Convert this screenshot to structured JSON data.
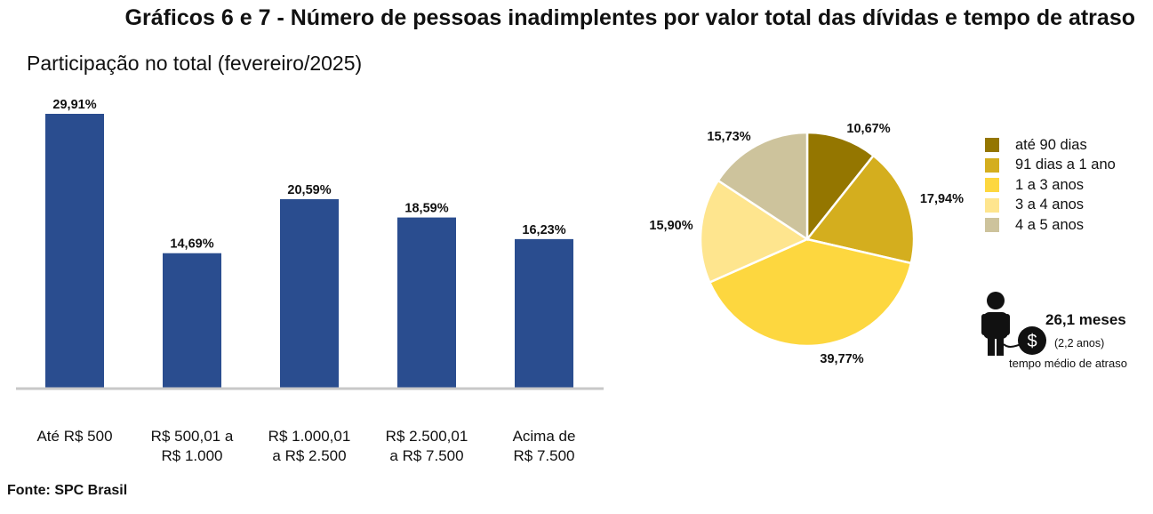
{
  "title": "Gráficos 6 e 7 - Número de pessoas inadimplentes por valor total das dívidas e tempo de atraso",
  "subtitle": "Participação no total (fevereiro/2025)",
  "source": "Fonte: SPC Brasil",
  "chart_data": [
    {
      "type": "bar",
      "categories": [
        [
          "Até R$ 500"
        ],
        [
          "R$ 500,01 a",
          "R$ 1.000"
        ],
        [
          "R$ 1.000,01",
          "a R$ 2.500"
        ],
        [
          "R$ 2.500,01",
          "a R$ 7.500"
        ],
        [
          "Acima de",
          "R$ 7.500"
        ]
      ],
      "values": [
        29.91,
        14.69,
        20.59,
        18.59,
        16.23
      ],
      "value_labels": [
        "29,91%",
        "14,69%",
        "20,59%",
        "18,59%",
        "16,23%"
      ],
      "ylim": [
        0,
        30
      ],
      "color": "#2a4d8f",
      "grid": false
    },
    {
      "type": "pie",
      "labels": [
        "até 90 dias",
        "91 dias a 1 ano",
        "1 a 3 anos",
        "3 a 4 anos",
        "4 a 5 anos"
      ],
      "values": [
        10.67,
        17.94,
        39.77,
        15.9,
        15.73
      ],
      "value_labels": [
        "10,67%",
        "17,94%",
        "39,77%",
        "15,90%",
        "15,73%"
      ],
      "colors": [
        "#947600",
        "#d4ae1e",
        "#fdd73f",
        "#fee58e",
        "#cdc39c"
      ],
      "legend": "right"
    }
  ],
  "delay": {
    "value": "26,1 meses",
    "years": "(2,2 anos)",
    "caption": "tempo médio de atraso",
    "icons": [
      "person-icon",
      "dollar-coin-icon"
    ]
  }
}
